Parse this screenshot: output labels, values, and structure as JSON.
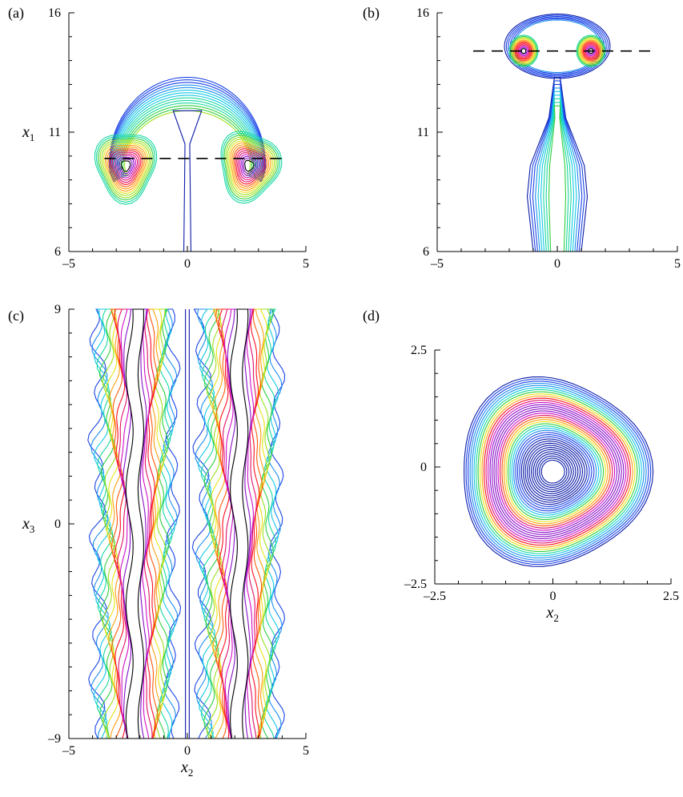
{
  "figure": {
    "panels": [
      {
        "id": "a",
        "label": "(a)"
      },
      {
        "id": "b",
        "label": "(b)"
      },
      {
        "id": "c",
        "label": "(c)"
      },
      {
        "id": "d",
        "label": "(d)"
      }
    ]
  },
  "chart_data": [
    {
      "panel": "a",
      "type": "contour",
      "title": "",
      "xlabel": "",
      "ylabel": {
        "base": "x",
        "sub": "1"
      },
      "xlim": [
        -5,
        5
      ],
      "ylim": [
        6,
        16
      ],
      "xticks": [
        "–5",
        "0",
        "5"
      ],
      "yticks": [
        "6",
        "11",
        "16"
      ],
      "xtick_values": [
        -5,
        0,
        5
      ],
      "ytick_values": [
        6,
        11,
        16
      ],
      "dashed_line": {
        "x": [
          -3.5,
          4
        ],
        "y": 9.9
      },
      "vortex_centers": [
        {
          "x": -2.6,
          "y": 9.6
        },
        {
          "x": 2.6,
          "y": 9.6
        }
      ],
      "grid": false
    },
    {
      "panel": "b",
      "type": "contour",
      "title": "",
      "xlabel": "",
      "ylabel": "",
      "xlim": [
        -5,
        5
      ],
      "ylim": [
        6,
        16
      ],
      "xticks": [
        "–5",
        "0",
        "5"
      ],
      "yticks": [
        "6",
        "11",
        "16"
      ],
      "xtick_values": [
        -5,
        0,
        5
      ],
      "ytick_values": [
        6,
        11,
        16
      ],
      "dashed_line": {
        "x": [
          -3.5,
          4
        ],
        "y": 14.4
      },
      "vortex_centers": [
        {
          "x": -1.4,
          "y": 14.4
        },
        {
          "x": 1.4,
          "y": 14.4
        }
      ],
      "grid": false
    },
    {
      "panel": "c",
      "type": "contour",
      "title": "",
      "xlabel": {
        "base": "x",
        "sub": "2"
      },
      "ylabel": {
        "base": "x",
        "sub": "3"
      },
      "xlim": [
        -5,
        5
      ],
      "ylim": [
        -9,
        9
      ],
      "xticks": [
        "–5",
        "0",
        "5"
      ],
      "yticks": [
        "–9",
        "0",
        "9"
      ],
      "xtick_values": [
        -5,
        0,
        5
      ],
      "ytick_values": [
        -9,
        0,
        9
      ],
      "grid": false
    },
    {
      "panel": "d",
      "type": "contour",
      "title": "",
      "xlabel": {
        "base": "x",
        "sub": "2"
      },
      "ylabel": "",
      "xlim": [
        -2.5,
        2.5
      ],
      "ylim": [
        -2.5,
        2.5
      ],
      "xticks": [
        "–2.5",
        "0",
        "2.5"
      ],
      "yticks": [
        "–2.5",
        "0",
        "2.5"
      ],
      "xtick_values": [
        -2.5,
        0,
        2.5
      ],
      "ytick_values": [
        -2.5,
        0,
        2.5
      ],
      "grid": false
    }
  ],
  "colors": {
    "contour_palette": [
      "#0a1aa8",
      "#1a44e6",
      "#1c8ef0",
      "#14c8e6",
      "#18d8a0",
      "#30d040",
      "#9ee020",
      "#e8e418",
      "#ffa010",
      "#ff5a0a",
      "#ff1020",
      "#e0106a",
      "#d010c8",
      "#8a10c8",
      "#000000"
    ],
    "axis": "#000000",
    "dash": "#000000"
  }
}
